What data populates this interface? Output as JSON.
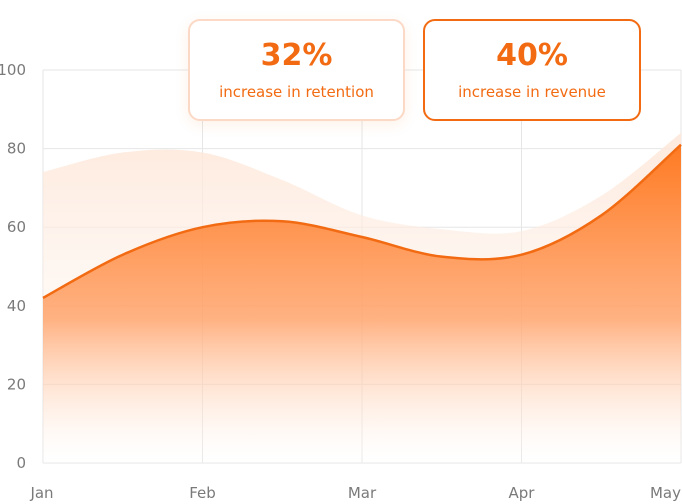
{
  "colors": {
    "accent": "#f26b12",
    "accent_light": "#ff8a3d",
    "ghost_area": "#fde7d9",
    "grid": "#e6e6e6",
    "tick_text": "#7a7a7a",
    "callout_soft_border": "#fbd9c6"
  },
  "callouts": [
    {
      "value": "32%",
      "label": "increase in retention"
    },
    {
      "value": "40%",
      "label": "increase in revenue"
    }
  ],
  "chart_data": {
    "type": "area",
    "categories": [
      "Jan",
      "Feb",
      "Mar",
      "Apr",
      "May"
    ],
    "yticks": [
      "0",
      "20",
      "40",
      "60",
      "80",
      "100"
    ],
    "ylim": [
      0,
      100
    ],
    "grid": true,
    "series": [
      {
        "style": "solid-gradient",
        "x": [
          0,
          0.5,
          1,
          1.5,
          2,
          2.5,
          3,
          3.5,
          4
        ],
        "values": [
          42,
          53,
          60,
          61.5,
          57.5,
          52.5,
          53,
          63,
          81
        ]
      },
      {
        "style": "faint-background",
        "x": [
          0,
          0.5,
          1,
          1.5,
          2,
          2.5,
          3,
          3.5,
          4
        ],
        "values": [
          74,
          79,
          79,
          72,
          63,
          59.5,
          59,
          68,
          84
        ]
      }
    ]
  }
}
